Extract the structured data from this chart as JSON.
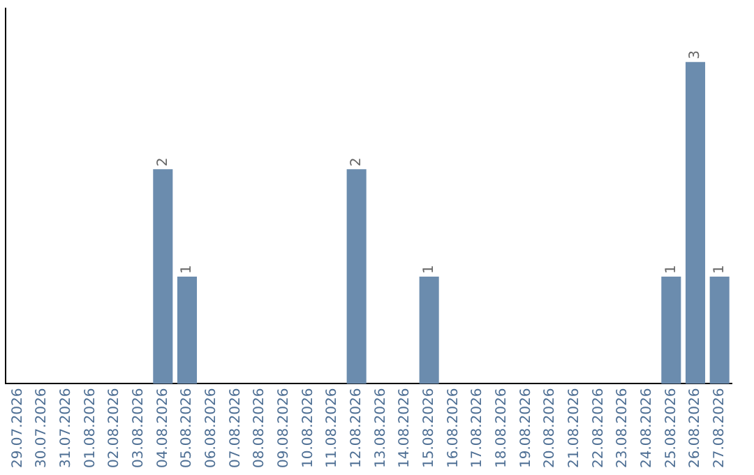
{
  "chart_data": {
    "type": "bar",
    "categories": [
      "29.07.2026",
      "30.07.2026",
      "31.07.2026",
      "01.08.2026",
      "02.08.2026",
      "03.08.2026",
      "04.08.2026",
      "05.08.2026",
      "06.08.2026",
      "07.08.2026",
      "08.08.2026",
      "09.08.2026",
      "10.08.2026",
      "11.08.2026",
      "12.08.2026",
      "13.08.2026",
      "14.08.2026",
      "15.08.2026",
      "16.08.2026",
      "17.08.2026",
      "18.08.2026",
      "19.08.2026",
      "20.08.2026",
      "21.08.2026",
      "22.08.2026",
      "23.08.2026",
      "24.08.2026",
      "25.08.2026",
      "26.08.2026",
      "27.08.2026"
    ],
    "values": [
      0,
      0,
      0,
      0,
      0,
      0,
      2,
      1,
      0,
      0,
      0,
      0,
      0,
      0,
      2,
      0,
      0,
      1,
      0,
      0,
      0,
      0,
      0,
      0,
      0,
      0,
      0,
      1,
      3,
      1
    ],
    "value_labels": [
      null,
      null,
      null,
      null,
      null,
      null,
      "2",
      "1",
      null,
      null,
      null,
      null,
      null,
      null,
      "2",
      null,
      null,
      "1",
      null,
      null,
      null,
      null,
      null,
      null,
      null,
      null,
      null,
      "1",
      "3",
      "1"
    ],
    "color": "#6b8cae",
    "grid": false,
    "legend": false,
    "tick_labels": "x"
  }
}
